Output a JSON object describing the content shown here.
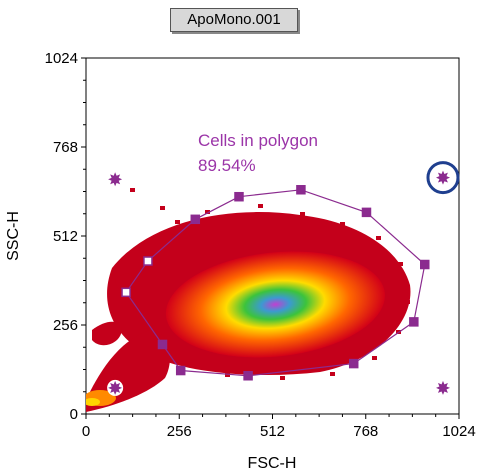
{
  "window": {
    "title": "ApoMono.001"
  },
  "chart_data": {
    "type": "scatter",
    "title": "ApoMono.001",
    "xlabel": "FSC-H",
    "ylabel": "SSC-H",
    "xlim": [
      0,
      1024
    ],
    "ylim": [
      0,
      1024
    ],
    "x_ticks": [
      "0",
      "256",
      "512",
      "768",
      "1024"
    ],
    "y_ticks": [
      "0",
      "256",
      "512",
      "768",
      "1024"
    ],
    "x_tick_values": [
      0,
      256,
      512,
      768,
      1024
    ],
    "y_tick_values": [
      0,
      256,
      512,
      768,
      1024
    ],
    "density_peak": {
      "x": 520,
      "y": 315
    },
    "gate": {
      "label": "Cells in polygon",
      "percent": "89.54%",
      "color": "#8b2b8f",
      "vertices": [
        {
          "x": 110,
          "y": 350
        },
        {
          "x": 170,
          "y": 440
        },
        {
          "x": 300,
          "y": 560
        },
        {
          "x": 420,
          "y": 625
        },
        {
          "x": 590,
          "y": 645
        },
        {
          "x": 770,
          "y": 580
        },
        {
          "x": 930,
          "y": 430
        },
        {
          "x": 900,
          "y": 265
        },
        {
          "x": 735,
          "y": 145
        },
        {
          "x": 445,
          "y": 110
        },
        {
          "x": 260,
          "y": 125
        },
        {
          "x": 210,
          "y": 200
        }
      ]
    },
    "extra_markers": [
      {
        "x": 80,
        "y": 675
      },
      {
        "x": 80,
        "y": 75,
        "selected": true
      },
      {
        "x": 980,
        "y": 75
      },
      {
        "x": 980,
        "y": 680,
        "circled": true
      }
    ],
    "colors": {
      "outer": "#c4001b",
      "density_scale": [
        "#d20018",
        "#ff6600",
        "#ffdc00",
        "#3cc33c",
        "#c040d0"
      ],
      "circle_highlight": "#1f3f8f"
    }
  }
}
